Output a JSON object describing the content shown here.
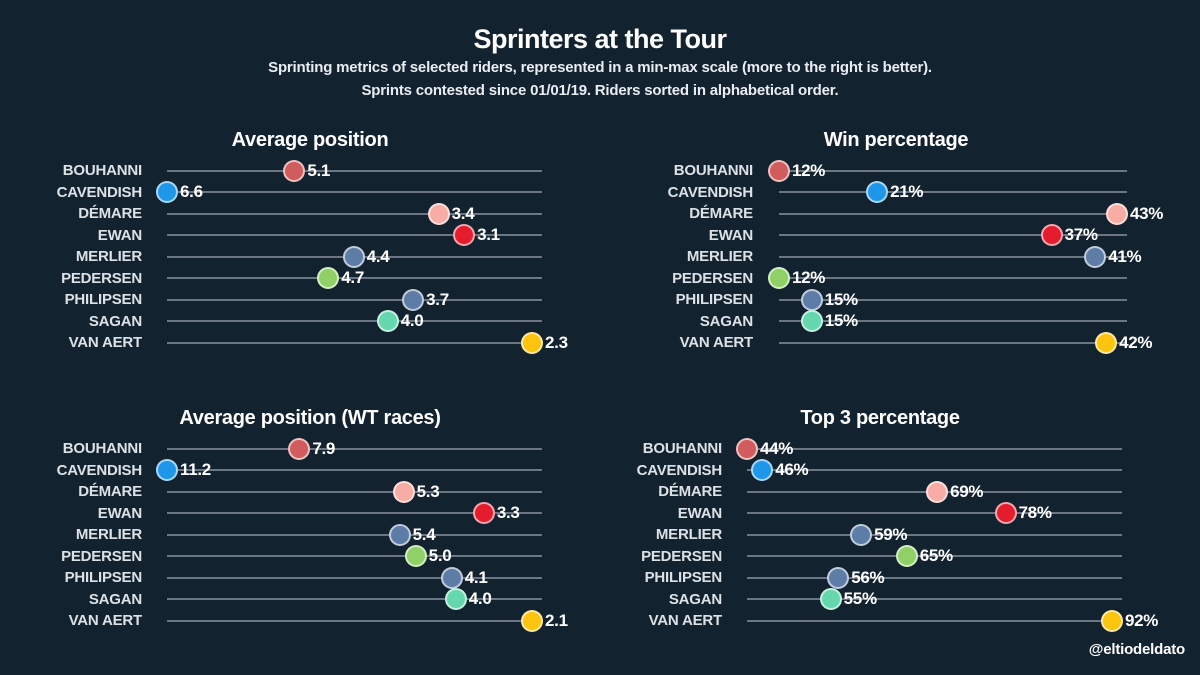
{
  "header": {
    "title": "Sprinters at the Tour",
    "subtitle1": "Sprinting metrics of selected riders, represented in a min-max scale (more to the right is better).",
    "subtitle2": "Sprints contested since 01/01/19. Riders sorted in alphabetical order."
  },
  "credit": "@eltiodeldato",
  "riders": [
    "BOUHANNI",
    "CAVENDISH",
    "DÉMARE",
    "EWAN",
    "MERLIER",
    "PEDERSEN",
    "PHILIPSEN",
    "SAGAN",
    "VAN AERT"
  ],
  "colors": {
    "background": "#13222f",
    "track_line": "#6b7583",
    "rider_label_text": "#dce1e6",
    "value_text": "#ffffff",
    "dot_ring": "rgba(255,255,255,0.62)",
    "riders": {
      "BOUHANNI": "#d15c5e",
      "CAVENDISH": "#1e97ea",
      "DÉMARE": "#f8aca6",
      "EWAN": "#e51c2d",
      "MERLIER": "#5d7ca6",
      "PEDERSEN": "#8fd166",
      "PHILIPSEN": "#5d7ca6",
      "SAGAN": "#64d7ae",
      "VAN AERT": "#fbc40f"
    }
  },
  "chart_data": [
    {
      "type": "scatter",
      "title": "Average position",
      "better": "lower",
      "scale": "min-max",
      "categories": [
        "BOUHANNI",
        "CAVENDISH",
        "DÉMARE",
        "EWAN",
        "MERLIER",
        "PEDERSEN",
        "PHILIPSEN",
        "SAGAN",
        "VAN AERT"
      ],
      "values": [
        5.1,
        6.6,
        3.4,
        3.1,
        4.4,
        4.7,
        3.7,
        4.0,
        2.3
      ],
      "labels": [
        "5.1",
        "6.6",
        "3.4",
        "3.1",
        "4.4",
        "4.7",
        "3.7",
        "4.0",
        "2.3"
      ],
      "range": [
        2.3,
        6.6
      ]
    },
    {
      "type": "scatter",
      "title": "Win percentage",
      "better": "higher",
      "scale": "min-max",
      "categories": [
        "BOUHANNI",
        "CAVENDISH",
        "DÉMARE",
        "EWAN",
        "MERLIER",
        "PEDERSEN",
        "PHILIPSEN",
        "SAGAN",
        "VAN AERT"
      ],
      "values": [
        12,
        21,
        43,
        37,
        41,
        12,
        15,
        15,
        42
      ],
      "labels": [
        "12%",
        "21%",
        "43%",
        "37%",
        "41%",
        "12%",
        "15%",
        "15%",
        "42%"
      ],
      "range": [
        12,
        43
      ]
    },
    {
      "type": "scatter",
      "title": "Average position (WT races)",
      "better": "lower",
      "scale": "min-max",
      "categories": [
        "BOUHANNI",
        "CAVENDISH",
        "DÉMARE",
        "EWAN",
        "MERLIER",
        "PEDERSEN",
        "PHILIPSEN",
        "SAGAN",
        "VAN AERT"
      ],
      "values": [
        7.9,
        11.2,
        5.3,
        3.3,
        5.4,
        5.0,
        4.1,
        4.0,
        2.1
      ],
      "labels": [
        "7.9",
        "11.2",
        "5.3",
        "3.3",
        "5.4",
        "5.0",
        "4.1",
        "4.0",
        "2.1"
      ],
      "range": [
        2.1,
        11.2
      ]
    },
    {
      "type": "scatter",
      "title": "Top 3 percentage",
      "better": "higher",
      "scale": "min-max",
      "categories": [
        "BOUHANNI",
        "CAVENDISH",
        "DÉMARE",
        "EWAN",
        "MERLIER",
        "PEDERSEN",
        "PHILIPSEN",
        "SAGAN",
        "VAN AERT"
      ],
      "values": [
        44,
        46,
        69,
        78,
        59,
        65,
        56,
        55,
        92
      ],
      "labels": [
        "44%",
        "46%",
        "69%",
        "78%",
        "59%",
        "65%",
        "56%",
        "55%",
        "92%"
      ],
      "range": [
        44,
        92
      ]
    }
  ]
}
